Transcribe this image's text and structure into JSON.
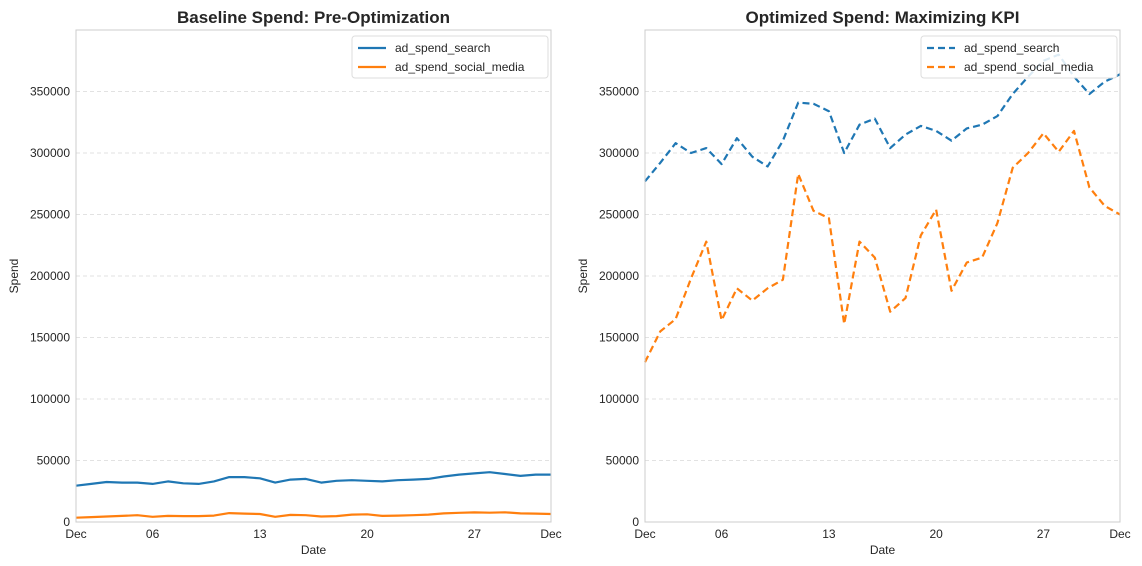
{
  "chart_data": [
    {
      "type": "line",
      "title": "Baseline Spend: Pre-Optimization",
      "xlabel": "Date",
      "ylabel": "Spend",
      "ylim": [
        0,
        400000
      ],
      "yticks": [
        0,
        50000,
        100000,
        150000,
        200000,
        250000,
        300000,
        350000
      ],
      "ytick_labels": [
        "0",
        "50000",
        "100000",
        "150000",
        "200000",
        "250000",
        "300000",
        "350000"
      ],
      "xlim": [
        1,
        32
      ],
      "xticks": [
        1,
        6,
        13,
        20,
        27,
        32
      ],
      "xtick_labels": [
        "Dec",
        "06",
        "13",
        "20",
        "27",
        "Dec"
      ],
      "grid": "horizontal-dashed",
      "legend": "top-right",
      "line_style": "solid",
      "x": [
        1,
        2,
        3,
        4,
        5,
        6,
        7,
        8,
        9,
        10,
        11,
        12,
        13,
        14,
        15,
        16,
        17,
        18,
        19,
        20,
        21,
        22,
        23,
        24,
        25,
        26,
        27,
        28,
        29,
        30,
        31,
        32
      ],
      "series": [
        {
          "name": "ad_spend_search",
          "color": "#1f77b4",
          "values": [
            29500,
            31000,
            32500,
            32000,
            32000,
            31000,
            33000,
            31500,
            31000,
            33000,
            36500,
            36500,
            35500,
            32000,
            34500,
            35000,
            32000,
            33500,
            34000,
            33500,
            33000,
            34000,
            34500,
            35000,
            37000,
            38500,
            39500,
            40500,
            39000,
            37500,
            38500,
            38500
          ]
        },
        {
          "name": "ad_spend_social_media",
          "color": "#ff7f0e",
          "values": [
            3500,
            4000,
            4500,
            5000,
            5500,
            4200,
            5000,
            4800,
            4800,
            5200,
            7200,
            6800,
            6500,
            4200,
            5800,
            5500,
            4500,
            4800,
            6000,
            6300,
            5000,
            5200,
            5500,
            6000,
            7000,
            7500,
            7800,
            7600,
            7900,
            7000,
            6800,
            6500
          ]
        }
      ]
    },
    {
      "type": "line",
      "title": "Optimized Spend: Maximizing KPI",
      "xlabel": "Date",
      "ylabel": "Spend",
      "ylim": [
        0,
        400000
      ],
      "yticks": [
        0,
        50000,
        100000,
        150000,
        200000,
        250000,
        300000,
        350000
      ],
      "ytick_labels": [
        "0",
        "50000",
        "100000",
        "150000",
        "200000",
        "250000",
        "300000",
        "350000"
      ],
      "xlim": [
        1,
        32
      ],
      "xticks": [
        1,
        6,
        13,
        20,
        27,
        32
      ],
      "xtick_labels": [
        "Dec",
        "06",
        "13",
        "20",
        "27",
        "Dec"
      ],
      "grid": "horizontal-dashed",
      "legend": "top-right",
      "line_style": "dashed",
      "x": [
        1,
        2,
        3,
        4,
        5,
        6,
        7,
        8,
        9,
        10,
        11,
        12,
        13,
        14,
        15,
        16,
        17,
        18,
        19,
        20,
        21,
        22,
        23,
        24,
        25,
        26,
        27,
        28,
        29,
        30,
        31,
        32
      ],
      "series": [
        {
          "name": "ad_spend_search",
          "color": "#1f77b4",
          "values": [
            277000,
            292000,
            308000,
            300000,
            304000,
            291000,
            312000,
            297000,
            289000,
            310000,
            341000,
            340000,
            334000,
            300000,
            323000,
            328000,
            304000,
            315000,
            322000,
            318000,
            310000,
            320000,
            323000,
            330000,
            348000,
            362000,
            375000,
            380000,
            362000,
            348000,
            358000,
            364000
          ]
        },
        {
          "name": "ad_spend_social_media",
          "color": "#ff7f0e",
          "values": [
            130000,
            155000,
            165000,
            198000,
            228000,
            164000,
            190000,
            180000,
            190000,
            197000,
            283000,
            253000,
            247000,
            161000,
            228000,
            215000,
            171000,
            182000,
            233000,
            254000,
            188000,
            211000,
            215000,
            243000,
            288000,
            300000,
            316000,
            301000,
            318000,
            272000,
            257000,
            250000
          ]
        }
      ]
    }
  ]
}
